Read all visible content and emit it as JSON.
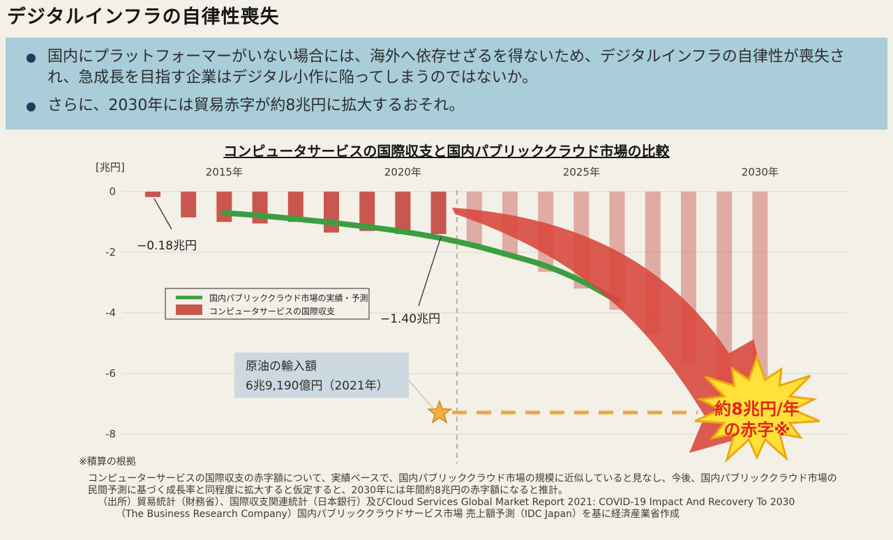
{
  "page": {
    "title": "デジタルインフラの自律性喪失"
  },
  "summary": {
    "background_color": "#a9cdd9",
    "bullet_color": "#23395d",
    "bullets": [
      "国内にプラットフォーマーがいない場合には、海外へ依存せざるを得ないため、デジタルインフラの自律性が喪失され、急成長を目指す企業はデジタル小作に陥ってしまうのではないか。",
      "さらに、2030年には貿易赤字が約8兆円に拡大するおそれ。"
    ]
  },
  "chart_data": {
    "type": "bar",
    "title": "コンピュータサービスの国際収支と国内パブリッククラウド市場の比較",
    "y_axis_unit_label": "[兆円]",
    "yticks": [
      0,
      -2,
      -4,
      -6,
      -8
    ],
    "ylim": [
      -8.6,
      0.3
    ],
    "xticks": [
      {
        "year": 2015,
        "label": "2015年"
      },
      {
        "year": 2020,
        "label": "2020年"
      },
      {
        "year": 2025,
        "label": "2025年"
      },
      {
        "year": 2030,
        "label": "2030年"
      }
    ],
    "grid": true,
    "legend_position": "middle-left",
    "series": [
      {
        "name": "コンピュータサービスの国際収支",
        "type": "bar",
        "color": "#c9574f",
        "forecast_opacity": 0.45,
        "points": [
          {
            "year": 2013,
            "value": -0.18,
            "forecast": false
          },
          {
            "year": 2014,
            "value": -0.85,
            "forecast": false
          },
          {
            "year": 2015,
            "value": -1.0,
            "forecast": false
          },
          {
            "year": 2016,
            "value": -1.05,
            "forecast": false
          },
          {
            "year": 2017,
            "value": -1.0,
            "forecast": false
          },
          {
            "year": 2018,
            "value": -1.35,
            "forecast": false
          },
          {
            "year": 2019,
            "value": -1.3,
            "forecast": false
          },
          {
            "year": 2020,
            "value": -1.4,
            "forecast": false
          },
          {
            "year": 2021,
            "value": -1.4,
            "forecast": false
          },
          {
            "year": 2022,
            "value": -1.75,
            "forecast": true
          },
          {
            "year": 2023,
            "value": -2.15,
            "forecast": true
          },
          {
            "year": 2024,
            "value": -2.65,
            "forecast": true
          },
          {
            "year": 2025,
            "value": -3.2,
            "forecast": true
          },
          {
            "year": 2026,
            "value": -3.9,
            "forecast": true
          },
          {
            "year": 2027,
            "value": -4.7,
            "forecast": true
          },
          {
            "year": 2028,
            "value": -5.7,
            "forecast": true
          },
          {
            "year": 2029,
            "value": -6.7,
            "forecast": true
          },
          {
            "year": 2030,
            "value": -7.7,
            "forecast": true
          }
        ]
      },
      {
        "name": "国内パブリッククラウド市場の実績・予測",
        "type": "line",
        "color": "#3b9e41",
        "points": [
          {
            "year": 2015,
            "value": -0.7
          },
          {
            "year": 2016,
            "value": -0.79
          },
          {
            "year": 2017,
            "value": -0.9
          },
          {
            "year": 2018,
            "value": -1.02
          },
          {
            "year": 2019,
            "value": -1.16
          },
          {
            "year": 2020,
            "value": -1.32
          },
          {
            "year": 2021,
            "value": -1.52
          },
          {
            "year": 2022,
            "value": -1.78
          },
          {
            "year": 2023,
            "value": -2.1
          },
          {
            "year": 2024,
            "value": -2.45
          },
          {
            "year": 2025,
            "value": -2.95
          },
          {
            "year": 2026,
            "value": -3.6
          }
        ]
      }
    ],
    "legend": {
      "items": [
        {
          "label": "国内パブリッククラウド市場の実績・予測",
          "color": "#3b9e41",
          "swatch": "line"
        },
        {
          "label": "コンピュータサービスの国際収支",
          "color": "#c9574f",
          "swatch": "bar"
        }
      ]
    },
    "annotations": {
      "first_bar_label": "−0.18兆円",
      "bar_2021_label": "−1.40兆円",
      "oil_box_line1": "原油の輸入額",
      "oil_box_line2": "6兆9,190億円（2021年）",
      "oil_reference_level": -7.3,
      "burst_line1": "約8兆円/年",
      "burst_line2": "の赤字※",
      "burst_fill": "#ffe13a",
      "burst_stroke": "#f0a70c",
      "arrow_color": "#d8463b",
      "orange_dash_color": "#f2a340",
      "star_color": "#f2b13d"
    }
  },
  "footnotes": {
    "basis_title": "※積算の根拠",
    "basis_line1": "コンピューターサービスの国際収支の赤字額について、実績ベースで、国内パブリッククラウド市場の規模に近似していると見なし、今後、国内パブリッククラウド市場の",
    "basis_line2": "民間予測に基づく成長率と同程度に拡大すると仮定すると、2030年には年間約8兆円の赤字額になると推計。",
    "source_line1": "（出所）貿易統計（財務省）、国際収支関連統計（日本銀行）及びCloud Services Global Market Report 2021: COVID-19 Impact And Recovery To 2030",
    "source_line2": "（The Business Research Company）国内パブリッククラウドサービス市場 売上額予測（IDC Japan）を基に経済産業省作成"
  }
}
